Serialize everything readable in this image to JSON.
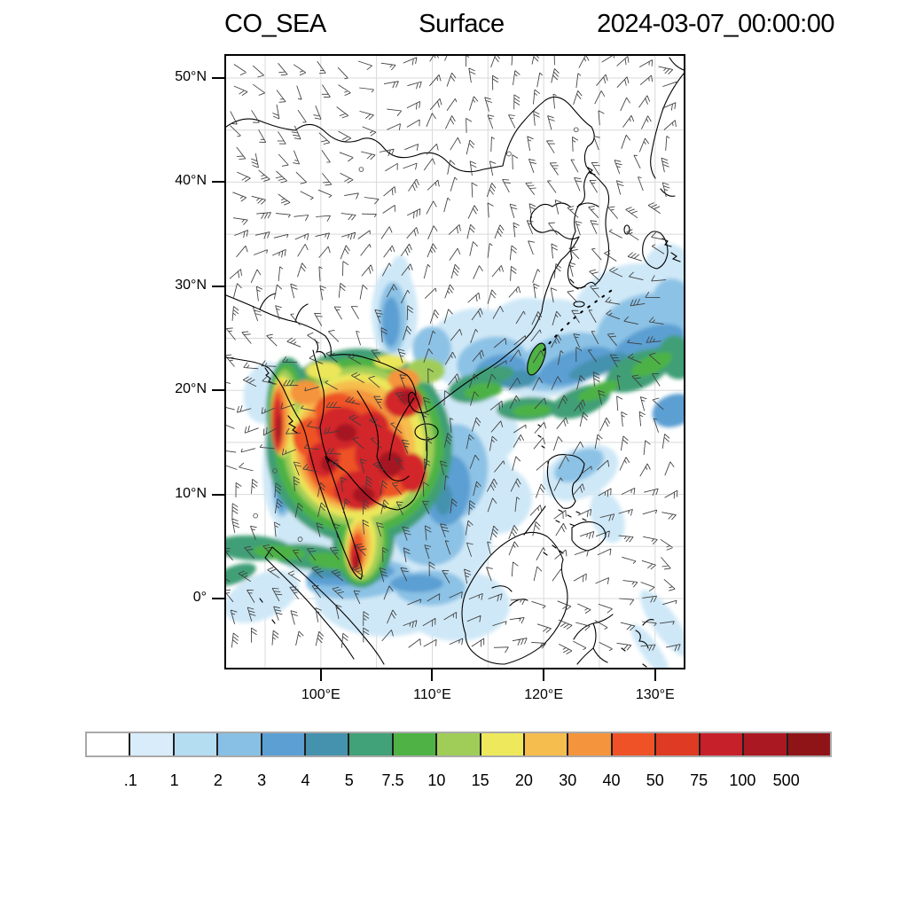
{
  "title": {
    "variable": "CO_SEA",
    "level": "Surface",
    "datetime": "2024-03-07_00:00:00"
  },
  "axes": {
    "lat_ticks": [
      {
        "label": "50°N",
        "lat": 50
      },
      {
        "label": "40°N",
        "lat": 40
      },
      {
        "label": "30°N",
        "lat": 30
      },
      {
        "label": "20°N",
        "lat": 20
      },
      {
        "label": "10°N",
        "lat": 10
      },
      {
        "label": "0°",
        "lat": 0
      }
    ],
    "lon_ticks": [
      {
        "label": "100°E",
        "lon": 100
      },
      {
        "label": "110°E",
        "lon": 110
      },
      {
        "label": "120°E",
        "lon": 120
      },
      {
        "label": "130°E",
        "lon": 130
      }
    ]
  },
  "colorbar": {
    "labels": [
      ".1",
      "1",
      "2",
      "3",
      "4",
      "5",
      "7.5",
      "10",
      "15",
      "20",
      "30",
      "40",
      "50",
      "75",
      "100",
      "500"
    ],
    "colors": [
      "#ffffff",
      "#d8ecf9",
      "#b5ddf1",
      "#87c0e4",
      "#5b9fd3",
      "#4592ae",
      "#41a178",
      "#4eb245",
      "#a0cd58",
      "#eee95c",
      "#f5bd4e",
      "#f4943c",
      "#ee5226",
      "#df3a23",
      "#c6202a",
      "#aa1821",
      "#8e1418"
    ]
  },
  "chart_data": {
    "type": "heatmap",
    "title": "CO_SEA   Surface   2024-03-07_00:00:00",
    "variable": "CO_SEA",
    "level": "Surface",
    "valid_time": "2024-03-07_00:00:00",
    "map_extent": {
      "lon": [
        91.5,
        133
      ],
      "lat": [
        -6.5,
        52
      ]
    },
    "xlabel": "",
    "ylabel": "",
    "x_tick_labels": [
      "100°E",
      "110°E",
      "120°E",
      "130°E"
    ],
    "y_tick_labels": [
      "0°",
      "10°N",
      "20°N",
      "30°N",
      "40°N",
      "50°N"
    ],
    "contour_levels": [
      0.1,
      1,
      2,
      3,
      4,
      5,
      7.5,
      10,
      15,
      20,
      30,
      40,
      50,
      75,
      100,
      500
    ],
    "palette": [
      "#ffffff",
      "#d8ecf9",
      "#b5ddf1",
      "#87c0e4",
      "#5b9fd3",
      "#4592ae",
      "#41a178",
      "#4eb245",
      "#a0cd58",
      "#eee95c",
      "#f5bd4e",
      "#f4943c",
      "#ee5226",
      "#df3a23",
      "#c6202a",
      "#aa1821",
      "#8e1418"
    ],
    "legend_position": "bottom",
    "grid": "5-degree graticule, light gray",
    "overlays": [
      "wind barbs (surface wind)",
      "coastlines",
      "country borders"
    ],
    "features": [
      {
        "name": "Indochina biomass-burning CO maximum (Myanmar/Thailand/Laos/Vietnam/Cambodia)",
        "approx_lon": [
          94,
          112
        ],
        "approx_lat": [
          8,
          24
        ],
        "approx_value": "75 to >500"
      },
      {
        "name": "Malay Peninsula plume tip",
        "approx_lon": [
          98,
          102
        ],
        "approx_lat": [
          1,
          8
        ],
        "approx_value": "50-500"
      },
      {
        "name": "Eastward outflow plume past Taiwan into NW Pacific",
        "approx_lon": [
          112,
          133
        ],
        "approx_lat": [
          17,
          27
        ],
        "approx_value": "5-20"
      },
      {
        "name": "Equatorial band near Malacca Strait / Sumatra",
        "approx_lon": [
          91.5,
          101
        ],
        "approx_lat": [
          3,
          7
        ],
        "approx_value": "5-20"
      },
      {
        "name": "Marine background South China Sea / maritime continent",
        "approx_lon": [
          100,
          125
        ],
        "approx_lat": [
          -6,
          15
        ],
        "approx_value": "0.1-3"
      },
      {
        "name": "Clean sector over Mongolia / N China / NW Pacific north of 30N",
        "approx_lon": [
          91.5,
          133
        ],
        "approx_lat": [
          30,
          52
        ],
        "approx_value": "<0.1"
      }
    ]
  }
}
